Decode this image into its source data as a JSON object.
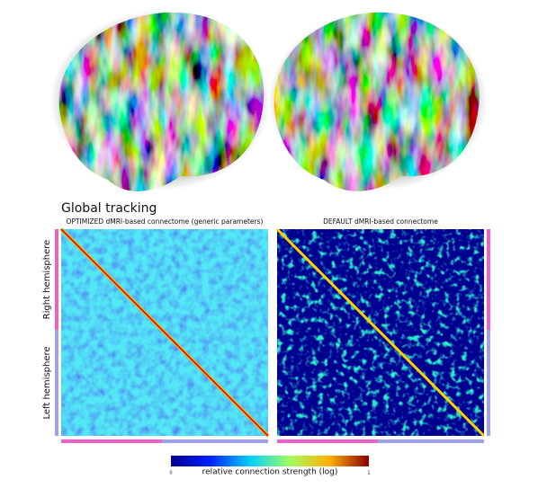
{
  "figure": {
    "section_title": "Global tracking",
    "left_matrix_title": "OPTIMIZED dMRI-based connectome (generic parameters)",
    "right_matrix_title": "DEFAULT dMRI-based connectome",
    "row_labels": [
      "Right hemisphere",
      "Left hemisphere"
    ],
    "colorbar": {
      "label": "relative connection strength (log)",
      "min_label": "0",
      "max_label": "1"
    }
  }
}
